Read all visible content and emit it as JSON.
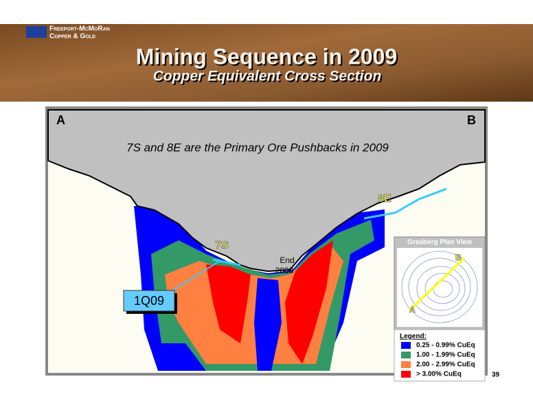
{
  "header": {
    "company_line1": "Freeport-McMoRan",
    "company_line2": "Copper & Gold",
    "title": "Mining Sequence in 2009",
    "subtitle": "Copper Equivalent Cross Section"
  },
  "section": {
    "left_label": "A",
    "right_label": "B",
    "headline": "7S and 8E are the Primary Ore Pushbacks in 2009",
    "labels": {
      "pushback_8e": "8E",
      "pushback_7s": "7S",
      "end_line1": "End",
      "end_line2": "2008",
      "quarter": "1Q09"
    }
  },
  "inset": {
    "title": "Grasberg Plan View",
    "point_a": "A",
    "point_b": "B"
  },
  "legend": {
    "title": "Legend:",
    "items": [
      {
        "label": "0.25 - 0.99% CuEq",
        "color": "#0000ff"
      },
      {
        "label": "1.00 - 1.99% CuEq",
        "color": "#339966"
      },
      {
        "label": "2.00 - 2.99% CuEq",
        "color": "#ff8040"
      },
      {
        "label": "> 3.00% CuEq",
        "color": "#ff0000"
      }
    ]
  },
  "page_number": "39"
}
